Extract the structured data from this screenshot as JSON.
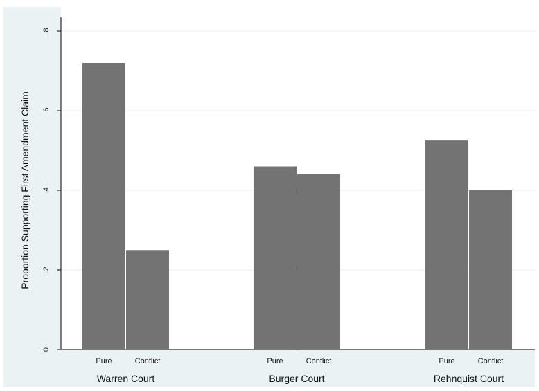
{
  "chart_data": {
    "type": "bar",
    "ylabel": "Proportion Supporting First Amendment Claim",
    "xlabel": "",
    "ylim": [
      0,
      0.8
    ],
    "yticks": [
      {
        "value": 0,
        "label": "0"
      },
      {
        "value": 0.2,
        "label": ".2"
      },
      {
        "value": 0.4,
        "label": ".4"
      },
      {
        "value": 0.6,
        "label": ".6"
      },
      {
        "value": 0.8,
        "label": ".8"
      }
    ],
    "grid": true,
    "groups": [
      {
        "label": "Warren Court",
        "bars": [
          {
            "label": "Pure",
            "value": 0.72
          },
          {
            "label": "Conflict",
            "value": 0.25
          }
        ]
      },
      {
        "label": "Burger Court",
        "bars": [
          {
            "label": "Pure",
            "value": 0.46
          },
          {
            "label": "Conflict",
            "value": 0.44
          }
        ]
      },
      {
        "label": "Rehnquist Court",
        "bars": [
          {
            "label": "Pure",
            "value": 0.525
          },
          {
            "label": "Conflict",
            "value": 0.4
          }
        ]
      }
    ],
    "colors": {
      "bar": "#737373",
      "plot_bg": "#ffffff",
      "outer_bg": "#eaf2f3",
      "grid": "#e6ecec",
      "axis": "#000000"
    }
  }
}
